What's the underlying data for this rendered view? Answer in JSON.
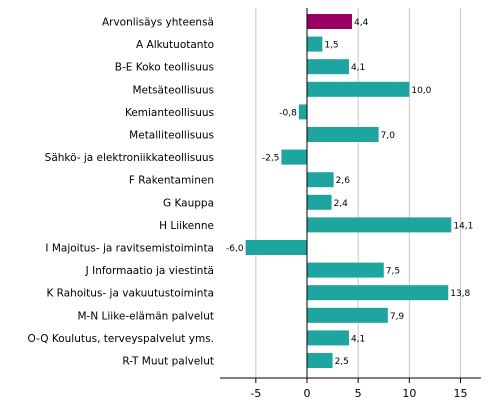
{
  "chart_data": {
    "type": "bar",
    "orientation": "horizontal",
    "title": "",
    "xlabel": "",
    "ylabel": "",
    "categories": [
      "Arvonlisäys yhteensä",
      "A Alkutuotanto",
      "B-E Koko teollisuus",
      "Metsäteollisuus",
      "Kemianteollisuus",
      "Metalliteollisuus",
      "Sähkö- ja elektroniikkateollisuus",
      "F Rakentaminen",
      "G Kauppa",
      "H Liikenne",
      "I Majoitus- ja ravitsemistoiminta",
      "J Informaatio ja viestintä",
      "K Rahoitus- ja vakuutustoiminta",
      "M-N Liike-elämän palvelut",
      "O-Q Koulutus, terveyspalvelut yms.",
      "R-T Muut palvelut"
    ],
    "values": [
      4.4,
      1.5,
      4.1,
      10.0,
      -0.8,
      7.0,
      -2.5,
      2.6,
      2.4,
      14.1,
      -6.0,
      7.5,
      13.8,
      7.9,
      4.1,
      2.5
    ],
    "data_labels": [
      "4,4",
      "1,5",
      "4,1",
      "10,0",
      "-0,8",
      "7,0",
      "-2,5",
      "2,6",
      "2,4",
      "14,1",
      "-6,0",
      "7,5",
      "13,8",
      "7,9",
      "4,1",
      "2,5"
    ],
    "bar_colors": [
      "#990066",
      "#1fa59f",
      "#1fa59f",
      "#1fa59f",
      "#1fa59f",
      "#1fa59f",
      "#1fa59f",
      "#1fa59f",
      "#1fa59f",
      "#1fa59f",
      "#1fa59f",
      "#1fa59f",
      "#1fa59f",
      "#1fa59f",
      "#1fa59f",
      "#1fa59f"
    ],
    "xlim": [
      -8.5,
      17
    ],
    "xticks": [
      -5,
      0,
      5,
      10,
      15
    ],
    "xtick_labels": [
      "-5",
      "0",
      "5",
      "10",
      "15"
    ],
    "grid": true,
    "legend": false
  }
}
